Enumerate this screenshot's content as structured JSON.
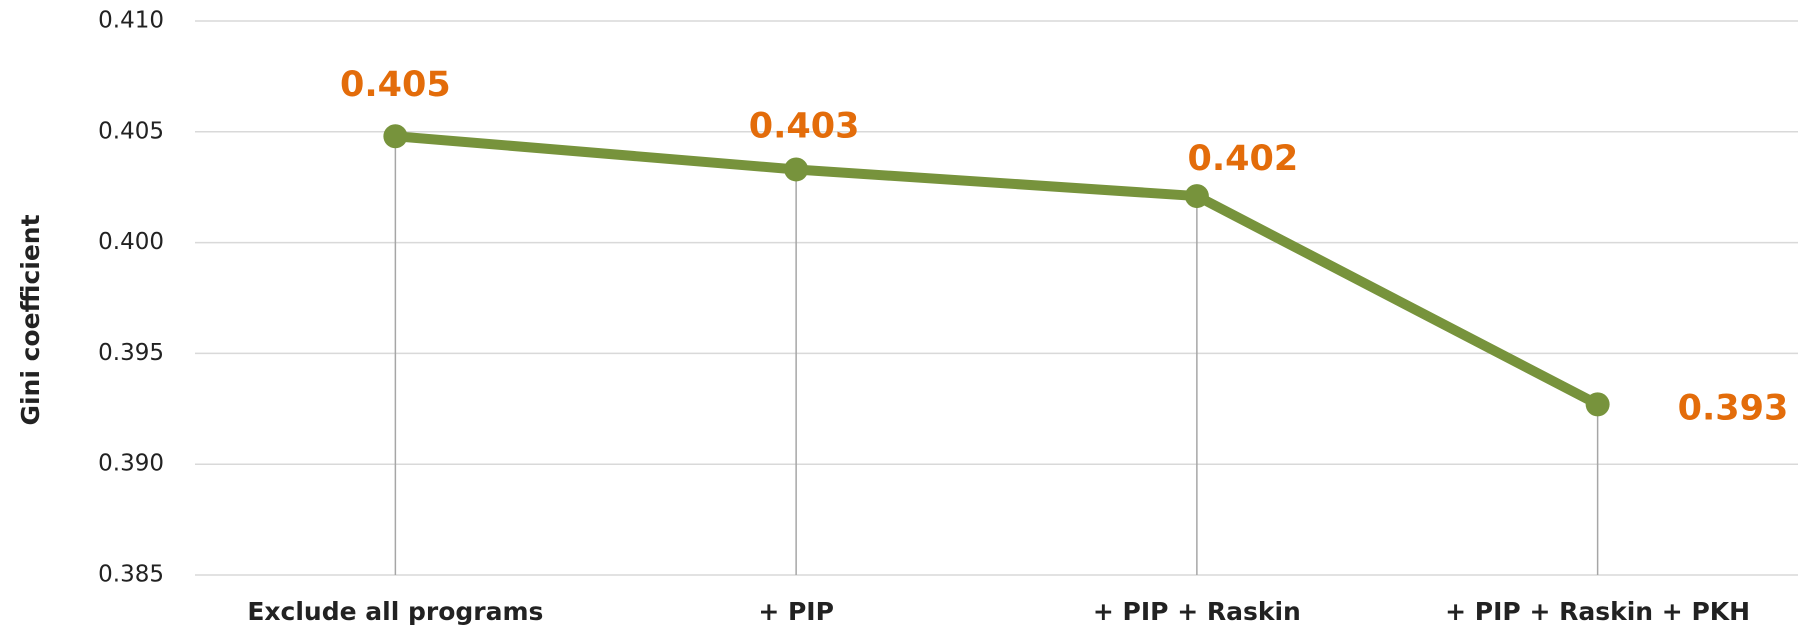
{
  "chart_data": {
    "type": "line",
    "y_label": "Gini coefficient",
    "categories": [
      "Exclude all programs",
      "+ PIP",
      "+ PIP + Raskin",
      "+ PIP + Raskin + PKH"
    ],
    "series": [
      {
        "name": "Gini coefficient",
        "color": "#77933c",
        "values": [
          0.4048,
          0.4033,
          0.4021,
          0.3927
        ],
        "value_labels": [
          "0.405",
          "0.403",
          "0.402",
          "0.393"
        ]
      }
    ],
    "value_label_color": "#e36c0a",
    "ylim": [
      0.385,
      0.41
    ],
    "yticks": [
      {
        "value": 0.385,
        "label": "0.385"
      },
      {
        "value": 0.39,
        "label": "0.390"
      },
      {
        "value": 0.395,
        "label": "0.395"
      },
      {
        "value": 0.4,
        "label": "0.400"
      },
      {
        "value": 0.405,
        "label": "0.405"
      },
      {
        "value": 0.41,
        "label": "0.410"
      }
    ],
    "grid": true,
    "drop_lines": true
  }
}
